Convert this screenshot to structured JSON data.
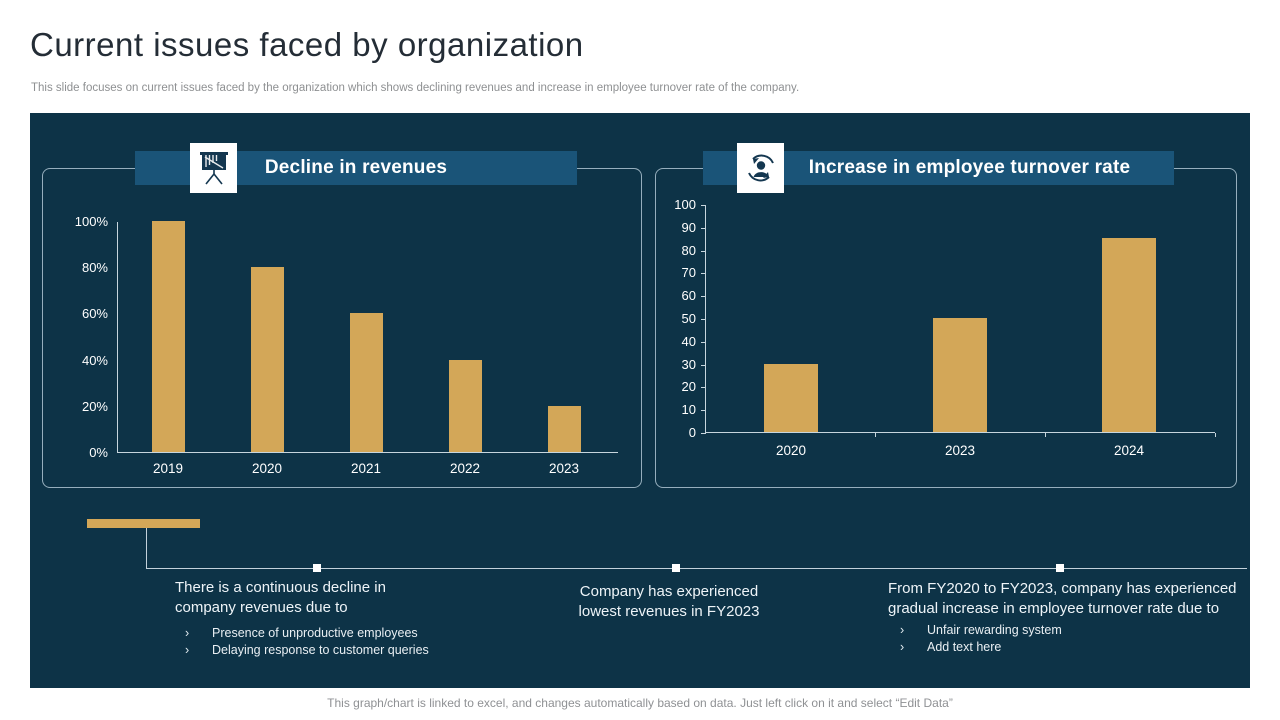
{
  "slide": {
    "title": "Current issues faced by organization",
    "subtitle": "This slide focuses on current issues faced by the organization which shows declining revenues and increase in employee turnover rate of the company.",
    "footer": "This graph/chart is linked to excel, and changes automatically based on data. Just left click on it and select “Edit Data”"
  },
  "colors": {
    "panel_bg": "#0d3347",
    "header_bar": "#1a5478",
    "bar_gold": "#d3a758",
    "axis_line": "#c7d6de",
    "icon_navy": "#143750"
  },
  "chart_data": [
    {
      "type": "bar",
      "title": "Decline in revenues",
      "icon": "presentation-declining-chart-icon",
      "categories": [
        "2019",
        "2020",
        "2021",
        "2022",
        "2023"
      ],
      "values": [
        100,
        80,
        60,
        40,
        20
      ],
      "unit": "%",
      "yticks": [
        "0%",
        "20%",
        "40%",
        "60%",
        "80%",
        "100%"
      ],
      "ylim": [
        0,
        100
      ],
      "grid": false,
      "legend": "none",
      "bar_color": "#d3a758"
    },
    {
      "type": "bar",
      "title": "Increase in employee turnover rate",
      "icon": "employee-turnover-icon",
      "categories": [
        "2020",
        "2023",
        "2024"
      ],
      "values": [
        30,
        50,
        85
      ],
      "unit": "",
      "yticks": [
        "0",
        "10",
        "20",
        "30",
        "40",
        "50",
        "60",
        "70",
        "80",
        "90",
        "100"
      ],
      "ylim": [
        0,
        100
      ],
      "grid": false,
      "legend": "none",
      "bar_color": "#d3a758"
    }
  ],
  "callouts": [
    {
      "heading": "There is a continuous decline in company revenues due to",
      "bullets": [
        "Presence of unproductive  employees",
        "Delaying response to customer queries"
      ]
    },
    {
      "heading": "Company has experienced lowest revenues in FY2023",
      "bullets": []
    },
    {
      "heading": "From FY2020 to FY2023, company has experienced gradual increase in employee turnover rate due to",
      "bullets": [
        "Unfair rewarding  system",
        "Add text here"
      ]
    }
  ]
}
